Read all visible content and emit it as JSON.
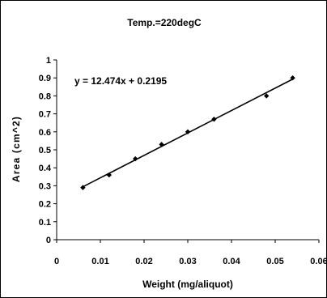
{
  "chart_data": {
    "type": "scatter",
    "title": "Temp.=220degC",
    "xlabel": "Weight (mg/aliquot)",
    "ylabel": "Area (cm^2)",
    "xlim": [
      0,
      0.06
    ],
    "ylim": [
      0,
      1
    ],
    "x_ticks": [
      "0",
      "0.01",
      "0.02",
      "0.03",
      "0.04",
      "0.05",
      "0.06"
    ],
    "y_ticks": [
      "0",
      "0.1",
      "0.2",
      "0.3",
      "0.4",
      "0.5",
      "0.6",
      "0.7",
      "0.8",
      "0.9",
      "1"
    ],
    "grid": false,
    "series": [
      {
        "x": [
          0.006,
          0.012,
          0.018,
          0.024,
          0.03,
          0.036,
          0.048,
          0.054
        ],
        "y": [
          0.29,
          0.36,
          0.45,
          0.53,
          0.6,
          0.67,
          0.8,
          0.9
        ]
      }
    ],
    "trendline": {
      "equation": "y = 12.474x + 0.2195",
      "slope": 12.474,
      "intercept": 0.2195,
      "x_range": [
        0.006,
        0.054
      ]
    }
  }
}
